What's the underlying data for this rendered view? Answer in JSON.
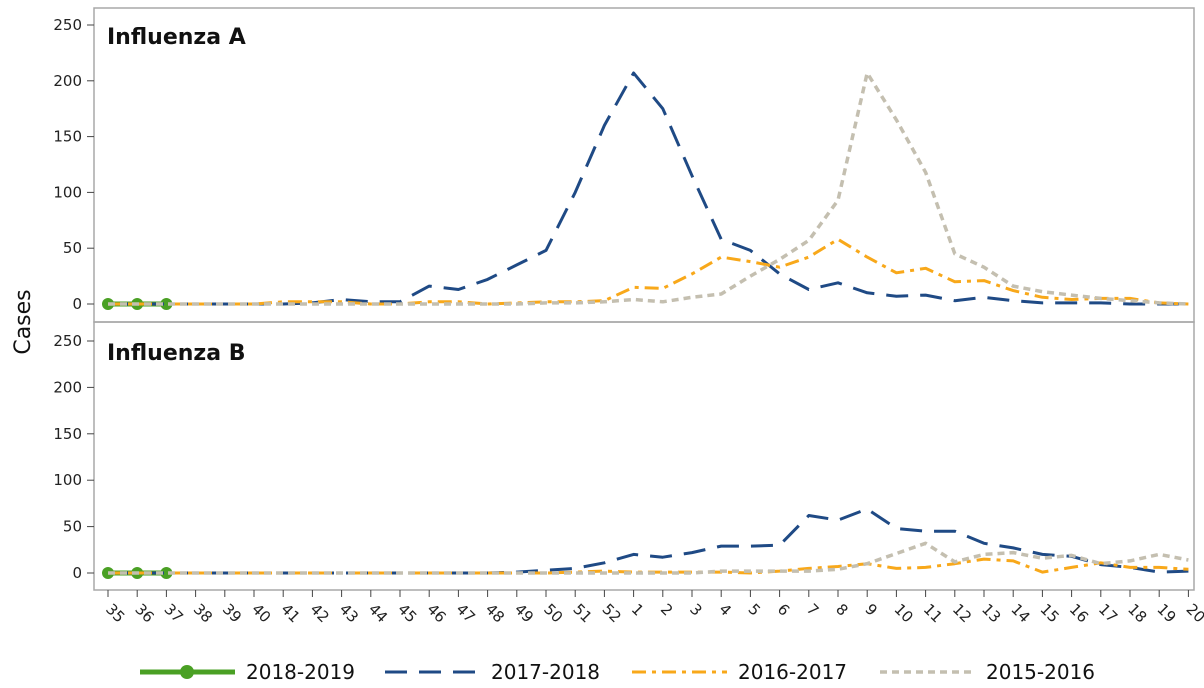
{
  "chart_data": {
    "type": "line",
    "ylabel": "Cases",
    "ylim": [
      0,
      250
    ],
    "yticks": [
      0,
      50,
      100,
      150,
      200,
      250
    ],
    "categories": [
      "35",
      "36",
      "37",
      "38",
      "39",
      "40",
      "41",
      "42",
      "43",
      "44",
      "45",
      "46",
      "47",
      "48",
      "49",
      "50",
      "51",
      "52",
      "1",
      "2",
      "3",
      "4",
      "5",
      "6",
      "7",
      "8",
      "9",
      "10",
      "11",
      "12",
      "13",
      "14",
      "15",
      "16",
      "17",
      "18",
      "19",
      "20"
    ],
    "series_styles": [
      {
        "name": "2018-2019",
        "color": "#4aa024",
        "dash": "",
        "width": 5,
        "markers": true
      },
      {
        "name": "2017-2018",
        "color": "#1f4a85",
        "dash": "22 12",
        "width": 3,
        "markers": false
      },
      {
        "name": "2016-2017",
        "color": "#f8a81a",
        "dash": "14 6 4 6",
        "width": 3,
        "markers": false
      },
      {
        "name": "2015-2016",
        "color": "#c4bfb0",
        "dash": "7 5",
        "width": 3.5,
        "markers": false
      }
    ],
    "panels": [
      {
        "title": "Influenza A",
        "series": [
          {
            "name": "2018-2019",
            "values": [
              0,
              0,
              0,
              null,
              null,
              null,
              null,
              null,
              null,
              null,
              null,
              null,
              null,
              null,
              null,
              null,
              null,
              null,
              null,
              null,
              null,
              null,
              null,
              null,
              null,
              null,
              null,
              null,
              null,
              null,
              null,
              null,
              null,
              null,
              null,
              null,
              null,
              null
            ]
          },
          {
            "name": "2017-2018",
            "values": [
              0,
              0,
              0,
              0,
              0,
              0,
              0,
              1,
              4,
              2,
              2,
              16,
              13,
              22,
              35,
              48,
              100,
              160,
              207,
              175,
              115,
              58,
              48,
              27,
              13,
              19,
              10,
              7,
              8,
              3,
              6,
              3,
              1,
              1,
              1,
              0,
              0,
              0
            ]
          },
          {
            "name": "2016-2017",
            "values": [
              0,
              0,
              0,
              0,
              0,
              0,
              2,
              2,
              2,
              0,
              0,
              2,
              2,
              0,
              1,
              2,
              2,
              3,
              15,
              14,
              27,
              42,
              38,
              33,
              42,
              58,
              42,
              28,
              32,
              20,
              21,
              12,
              6,
              4,
              5,
              5,
              1,
              0
            ]
          },
          {
            "name": "2015-2016",
            "values": [
              0,
              0,
              0,
              0,
              0,
              0,
              0,
              0,
              0,
              0,
              0,
              0,
              0,
              0,
              0,
              1,
              1,
              2,
              4,
              2,
              6,
              9,
              25,
              40,
              57,
              93,
              207,
              165,
              118,
              45,
              33,
              16,
              11,
              8,
              5,
              3,
              1,
              0
            ]
          }
        ]
      },
      {
        "title": "Influenza B",
        "series": [
          {
            "name": "2018-2019",
            "values": [
              0,
              0,
              0,
              null,
              null,
              null,
              null,
              null,
              null,
              null,
              null,
              null,
              null,
              null,
              null,
              null,
              null,
              null,
              null,
              null,
              null,
              null,
              null,
              null,
              null,
              null,
              null,
              null,
              null,
              null,
              null,
              null,
              null,
              null,
              null,
              null,
              null,
              null
            ]
          },
          {
            "name": "2017-2018",
            "values": [
              0,
              0,
              0,
              0,
              0,
              0,
              0,
              0,
              0,
              0,
              0,
              0,
              0,
              0,
              1,
              3,
              5,
              11,
              20,
              17,
              22,
              29,
              29,
              30,
              62,
              57,
              69,
              48,
              45,
              45,
              32,
              27,
              20,
              18,
              9,
              6,
              1,
              2
            ]
          },
          {
            "name": "2016-2017",
            "values": [
              0,
              0,
              0,
              0,
              0,
              0,
              0,
              0,
              0,
              0,
              0,
              0,
              0,
              0,
              0,
              0,
              1,
              2,
              1,
              1,
              1,
              1,
              0,
              2,
              5,
              7,
              10,
              5,
              6,
              10,
              15,
              13,
              1,
              6,
              11,
              6,
              6,
              4
            ]
          },
          {
            "name": "2015-2016",
            "values": [
              0,
              0,
              0,
              0,
              0,
              0,
              0,
              0,
              0,
              0,
              0,
              0,
              0,
              0,
              0,
              0,
              0,
              0,
              0,
              0,
              0,
              2,
              2,
              2,
              2,
              4,
              10,
              21,
              32,
              12,
              20,
              22,
              16,
              19,
              10,
              13,
              20,
              14
            ]
          }
        ]
      }
    ],
    "legend_position": "bottom"
  }
}
